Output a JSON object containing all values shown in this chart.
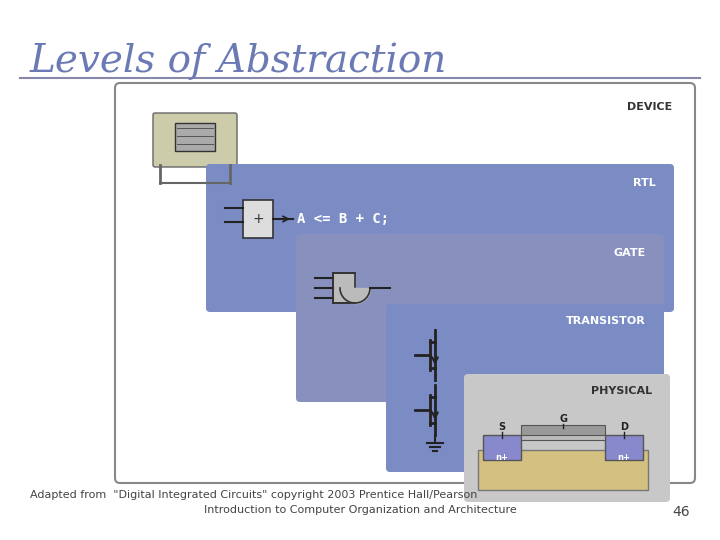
{
  "title": "Levels of Abstraction",
  "title_color": "#6b7ab5",
  "title_fontsize": 28,
  "bg_color": "#ffffff",
  "slide_bg": "#ffffff",
  "separator_color": "#8888aa",
  "box_device_color": "#ffffff",
  "box_device_edge": "#888888",
  "box_rtl_color": "#7b8cc4",
  "box_gate_color": "#9aa0cc",
  "box_transistor_color": "#7b8cc4",
  "box_physical_color": "#d0d0d0",
  "label_device": "DEVICE",
  "label_rtl": "RTL",
  "label_gate": "GATE",
  "label_transistor": "TRANSISTOR",
  "label_physical": "PHYSICAL",
  "label_color": "#ffffff",
  "label_dark": "#333333",
  "rtl_code": "A <= B + C;",
  "footer1": "Adapted from  \"Digital Integrated Circuits\" copyright 2003 Prentice Hall/Pearson",
  "footer2": "Introduction to Computer Organization and Architecture",
  "page_num": "46",
  "footer_fontsize": 8,
  "page_num_fontsize": 10
}
